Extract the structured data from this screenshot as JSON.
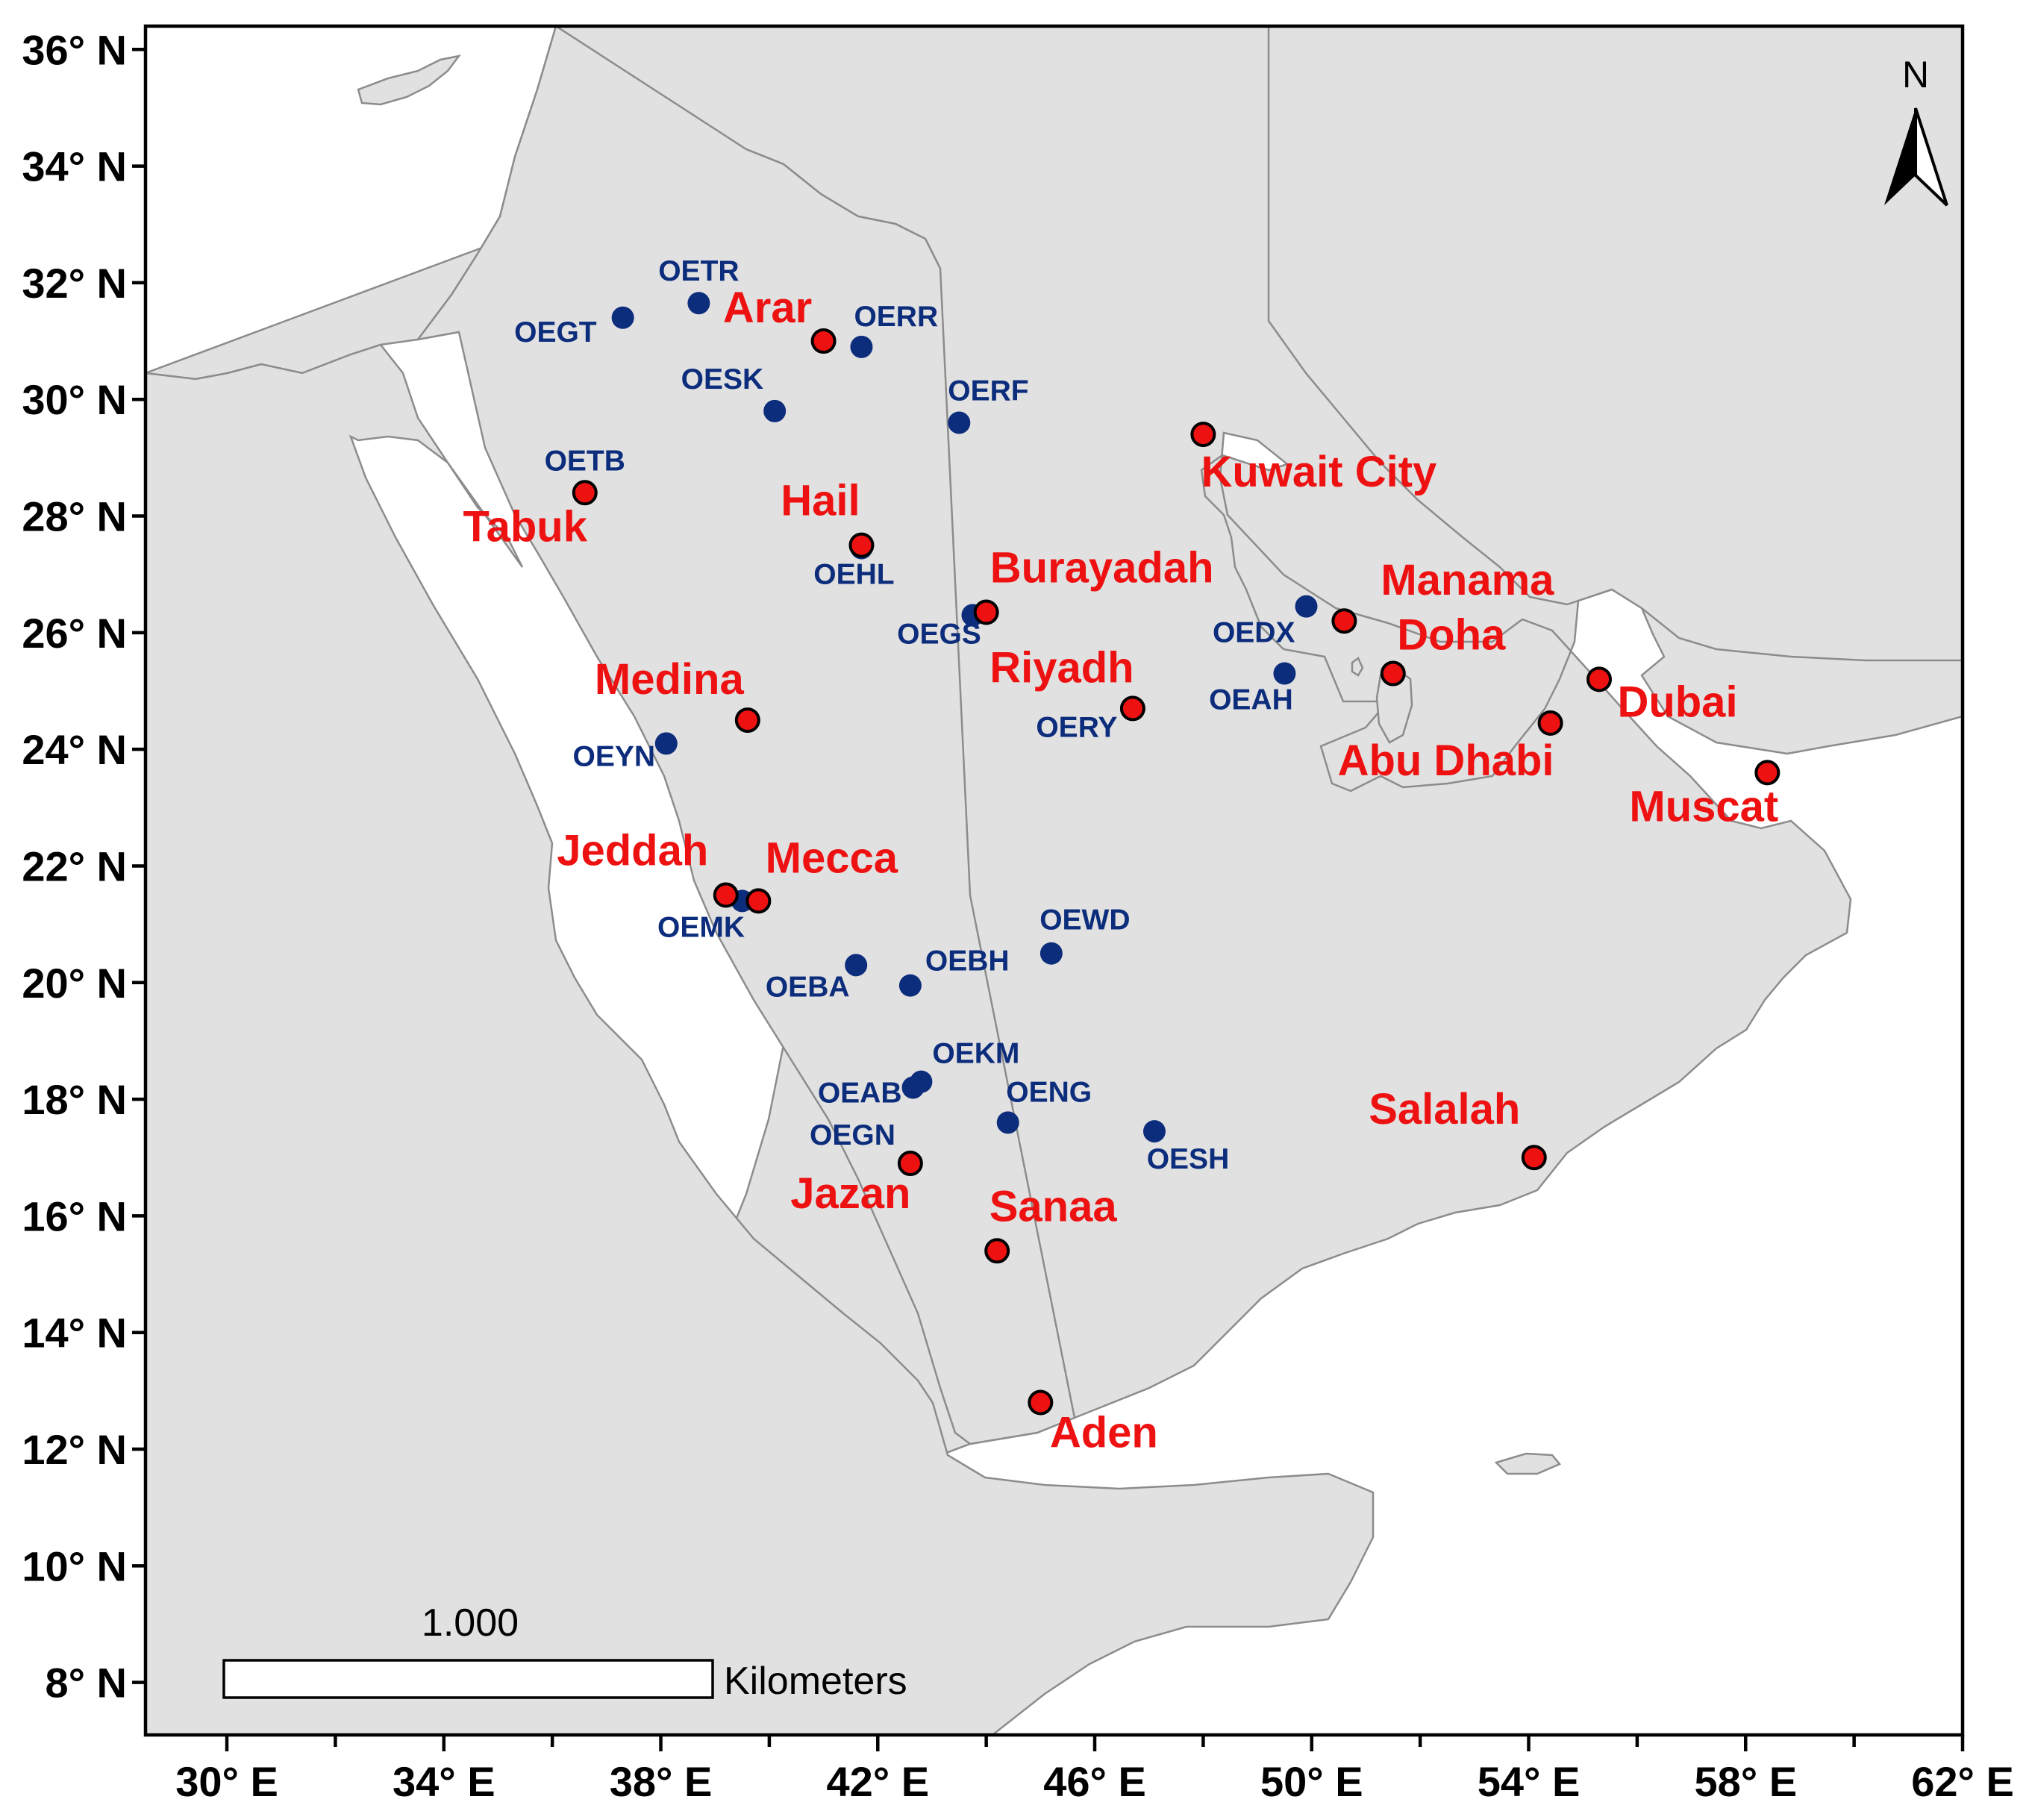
{
  "map": {
    "x_axis": {
      "range": [
        28.5,
        62
      ],
      "ticks": [
        30,
        34,
        38,
        42,
        46,
        50,
        54,
        58,
        62
      ],
      "minor_ticks": [
        32,
        36,
        40,
        44,
        48,
        52,
        56,
        60
      ],
      "labels": [
        "30° E",
        "34° E",
        "38° E",
        "42° E",
        "46° E",
        "50° E",
        "54° E",
        "58° E",
        "62° E"
      ]
    },
    "y_axis": {
      "range": [
        7.1,
        36.4
      ],
      "ticks": [
        36,
        34,
        32,
        30,
        28,
        26,
        24,
        22,
        20,
        18,
        16,
        14,
        12,
        10,
        8
      ],
      "labels": [
        "36° N",
        "34° N",
        "32° N",
        "30° N",
        "28° N",
        "26° N",
        "24° N",
        "22° N",
        "20° N",
        "18° N",
        "16° N",
        "14° N",
        "12° N",
        "10° N",
        "8° N"
      ]
    },
    "colors": {
      "land": "#e1e1e1",
      "coast": "#8c8c8c",
      "water": "#ffffff",
      "city": "#ee1111",
      "station": "#0c2c7c",
      "frame": "#000000"
    },
    "cities": [
      {
        "name": "Arar",
        "lon": 41.0,
        "lat": 31.0
      },
      {
        "name": "Tabuk",
        "lon": 36.6,
        "lat": 28.4
      },
      {
        "name": "Hail",
        "lon": 41.7,
        "lat": 27.5
      },
      {
        "name": "Kuwait City",
        "lon": 48.0,
        "lat": 29.4
      },
      {
        "name": "Burayadah",
        "lon": 44.0,
        "lat": 26.35
      },
      {
        "name": "Manama",
        "lon": 50.6,
        "lat": 26.2
      },
      {
        "name": "Doha",
        "lon": 51.5,
        "lat": 25.3
      },
      {
        "name": "Riyadh",
        "lon": 46.7,
        "lat": 24.7
      },
      {
        "name": "Dubai",
        "lon": 55.3,
        "lat": 25.2
      },
      {
        "name": "Medina",
        "lon": 39.6,
        "lat": 24.5
      },
      {
        "name": "Abu Dhabi",
        "lon": 54.4,
        "lat": 24.45
      },
      {
        "name": "Muscat",
        "lon": 58.4,
        "lat": 23.6
      },
      {
        "name": "Jeddah",
        "lon": 39.2,
        "lat": 21.5
      },
      {
        "name": "Mecca",
        "lon": 39.8,
        "lat": 21.4
      },
      {
        "name": "Salalah",
        "lon": 54.1,
        "lat": 17.0
      },
      {
        "name": "Jazan",
        "lon": 42.6,
        "lat": 16.9
      },
      {
        "name": "Sanaa",
        "lon": 44.2,
        "lat": 15.4
      },
      {
        "name": "Aden",
        "lon": 45.0,
        "lat": 12.8
      }
    ],
    "stations": [
      {
        "code": "OETR",
        "lon": 38.7,
        "lat": 31.65
      },
      {
        "code": "OEGT",
        "lon": 37.3,
        "lat": 31.4
      },
      {
        "code": "OERR",
        "lon": 41.7,
        "lat": 30.9
      },
      {
        "code": "OESK",
        "lon": 40.1,
        "lat": 29.8
      },
      {
        "code": "OERF",
        "lon": 43.5,
        "lat": 29.6
      },
      {
        "code": "OETB",
        "lon": 36.6,
        "lat": 28.4
      },
      {
        "code": "OEHL",
        "lon": 41.7,
        "lat": 27.45
      },
      {
        "code": "OEGS",
        "lon": 43.75,
        "lat": 26.3
      },
      {
        "code": "OEDX",
        "lon": 49.9,
        "lat": 26.45
      },
      {
        "code": "OEAH",
        "lon": 49.5,
        "lat": 25.3
      },
      {
        "code": "OERY",
        "lon": 46.7,
        "lat": 24.7
      },
      {
        "code": "OEYN",
        "lon": 38.1,
        "lat": 24.1
      },
      {
        "code": "OEMK",
        "lon": 39.5,
        "lat": 21.4
      },
      {
        "code": "OEWD",
        "lon": 45.2,
        "lat": 20.5
      },
      {
        "code": "OEBA",
        "lon": 41.6,
        "lat": 20.3
      },
      {
        "code": "OEBH",
        "lon": 42.6,
        "lat": 19.95
      },
      {
        "code": "OEKM",
        "lon": 42.8,
        "lat": 18.3
      },
      {
        "code": "OEAB",
        "lon": 42.65,
        "lat": 18.2
      },
      {
        "code": "OENG",
        "lon": 44.4,
        "lat": 17.6
      },
      {
        "code": "OESH",
        "lon": 47.1,
        "lat": 17.45
      },
      {
        "code": "OEGN",
        "lon": 42.6,
        "lat": 16.9
      }
    ],
    "scale_bar": {
      "value": "1.000",
      "unit": "Kilometers"
    },
    "north_arrow": {
      "label": "N"
    }
  }
}
